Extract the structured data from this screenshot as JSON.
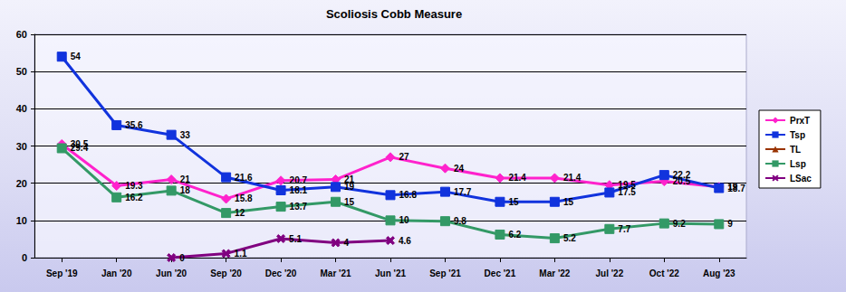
{
  "chart_data": {
    "type": "line",
    "title": "Scoliosis Cobb Measure",
    "categories": [
      "Sep '19",
      "Jan '20",
      "Jun '20",
      "Sep '20",
      "Dec '20",
      "Mar '21",
      "Jun '21",
      "Sep '21",
      "Dec '21",
      "Mar '22",
      "Jul '22",
      "Oct '22",
      "Aug '23"
    ],
    "series": [
      {
        "name": "PrxT",
        "color": "#ff22cc",
        "marker": "diamond",
        "values": [
          30.5,
          19.3,
          21,
          15.8,
          20.7,
          21,
          27,
          24,
          21.4,
          21.4,
          19.5,
          20.5,
          19
        ]
      },
      {
        "name": "Tsp",
        "color": "#1133dd",
        "marker": "square",
        "values": [
          54,
          35.6,
          33,
          21.6,
          18.1,
          19,
          16.8,
          17.7,
          15,
          15,
          17.5,
          22.2,
          18.7
        ]
      },
      {
        "name": "TL",
        "color": "#993300",
        "marker": "triangle",
        "values": [
          null,
          null,
          null,
          null,
          null,
          null,
          null,
          null,
          null,
          null,
          null,
          null,
          null
        ]
      },
      {
        "name": "Lsp",
        "color": "#339966",
        "marker": "square",
        "values": [
          29.4,
          16.2,
          18,
          12,
          13.7,
          15,
          10,
          9.8,
          6.2,
          5.2,
          7.7,
          9.2,
          9
        ]
      },
      {
        "name": "LSac",
        "color": "#800080",
        "marker": "x",
        "values": [
          null,
          null,
          0,
          1.1,
          5.1,
          4,
          4.6,
          null,
          null,
          null,
          null,
          null,
          null
        ]
      }
    ],
    "ylim": [
      0,
      60
    ],
    "yticks": [
      0,
      10,
      20,
      30,
      40,
      50,
      60
    ],
    "grid": true,
    "legend": "right",
    "data_labels": true
  }
}
